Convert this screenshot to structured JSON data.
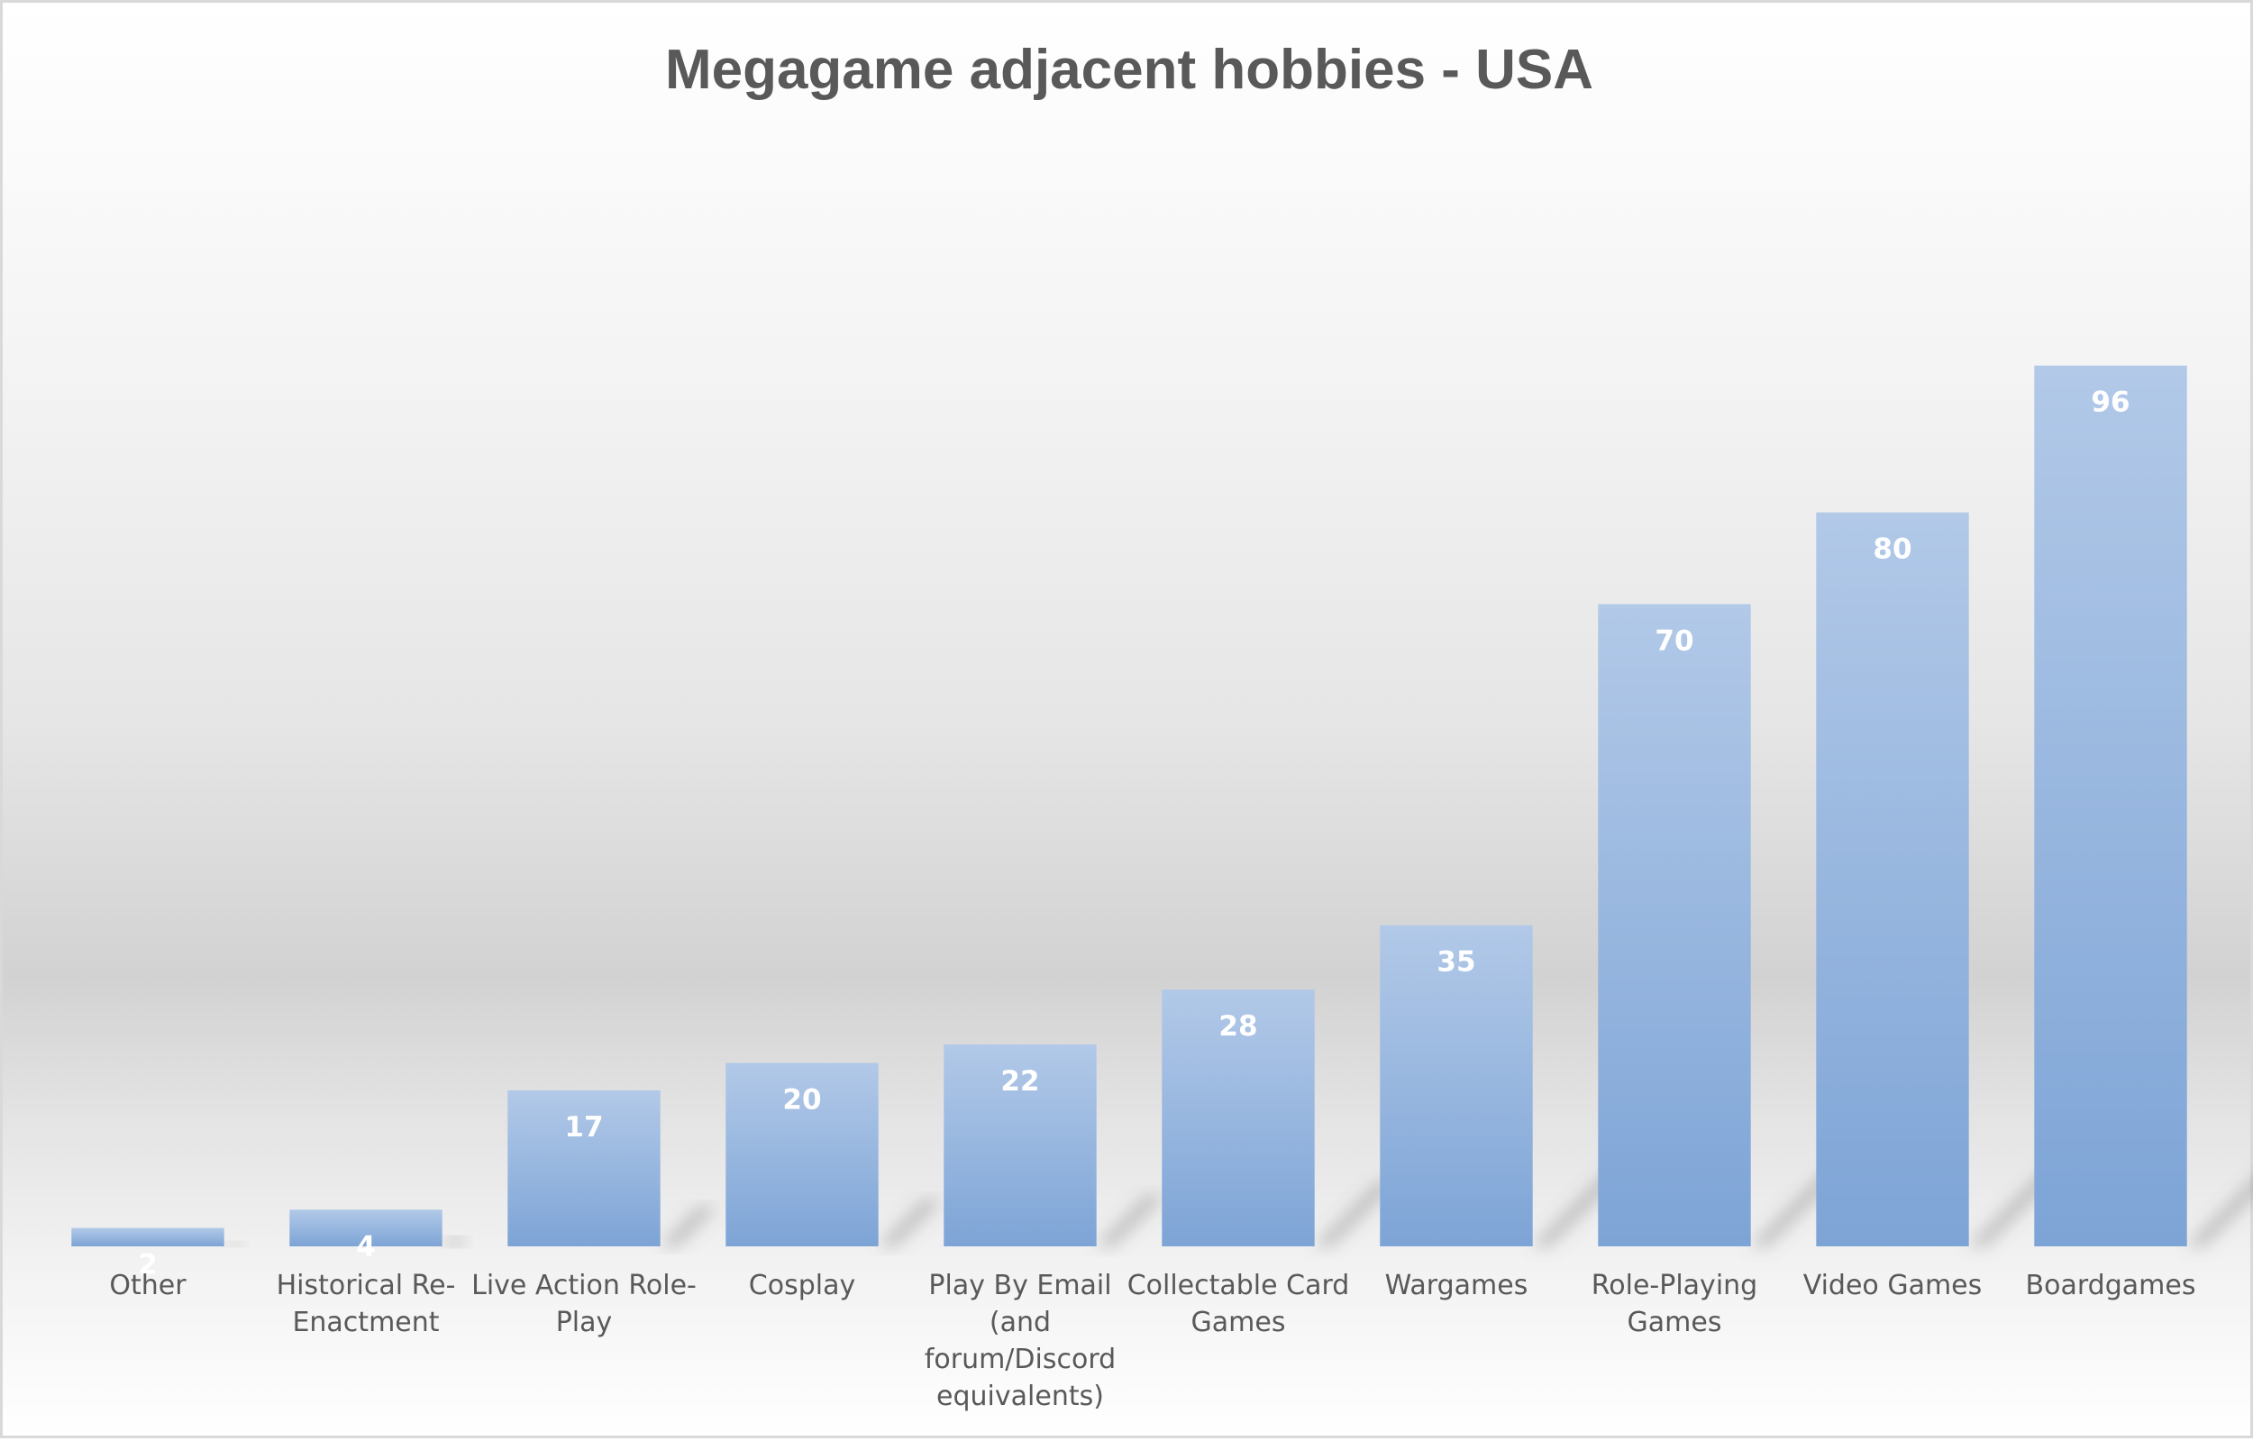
{
  "chart_data": {
    "type": "bar",
    "title": "Megagame adjacent hobbies - USA",
    "categories": [
      [
        "Other"
      ],
      [
        "Historical Re-",
        "Enactment"
      ],
      [
        "Live Action Role-",
        "Play"
      ],
      [
        "Cosplay"
      ],
      [
        "Play By Email",
        "(and",
        "forum/Discord",
        "equivalents)"
      ],
      [
        "Collectable Card",
        "Games"
      ],
      [
        "Wargames"
      ],
      [
        "Role-Playing",
        "Games"
      ],
      [
        "Video Games"
      ],
      [
        "Boardgames"
      ]
    ],
    "values": [
      2,
      4,
      17,
      20,
      22,
      28,
      35,
      70,
      80,
      96
    ],
    "data_labels": true,
    "grid": false,
    "legend": "none",
    "colors": {
      "bar_top": "#b2c9e8",
      "bar_bottom": "#7da4d6",
      "text": "#595959",
      "data_label": "#ffffff"
    }
  }
}
